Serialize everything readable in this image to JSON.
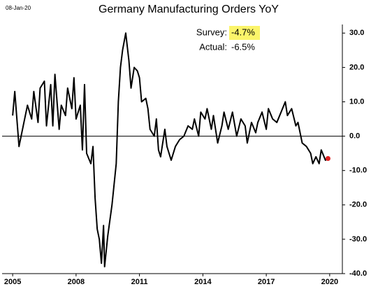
{
  "chart_data": {
    "type": "line",
    "date_stamp": "08-Jan-20",
    "title": "Germany Manufacturing Orders YoY",
    "annotations": [
      {
        "label": "Survey:",
        "value": "-4.7%",
        "highlight": "#fbf46a"
      },
      {
        "label": "Actual:",
        "value": "-6.5%"
      }
    ],
    "x": [
      2005.0,
      2005.1,
      2005.3,
      2005.5,
      2005.7,
      2005.9,
      2006.0,
      2006.2,
      2006.3,
      2006.5,
      2006.6,
      2006.8,
      2006.9,
      2007.0,
      2007.2,
      2007.3,
      2007.5,
      2007.6,
      2007.8,
      2007.9,
      2008.0,
      2008.2,
      2008.3,
      2008.4,
      2008.5,
      2008.7,
      2008.8,
      2008.9,
      2009.0,
      2009.1,
      2009.2,
      2009.3,
      2009.35,
      2009.5,
      2009.7,
      2009.9,
      2010.0,
      2010.1,
      2010.2,
      2010.35,
      2010.5,
      2010.6,
      2010.75,
      2010.9,
      2011.0,
      2011.1,
      2011.3,
      2011.4,
      2011.5,
      2011.7,
      2011.8,
      2011.9,
      2012.0,
      2012.2,
      2012.3,
      2012.5,
      2012.7,
      2012.9,
      2013.1,
      2013.3,
      2013.5,
      2013.6,
      2013.8,
      2013.9,
      2014.1,
      2014.2,
      2014.4,
      2014.5,
      2014.7,
      2014.9,
      2015.0,
      2015.2,
      2015.4,
      2015.6,
      2015.8,
      2016.0,
      2016.1,
      2016.3,
      2016.5,
      2016.6,
      2016.8,
      2017.0,
      2017.1,
      2017.3,
      2017.5,
      2017.7,
      2017.9,
      2018.0,
      2018.2,
      2018.4,
      2018.5,
      2018.7,
      2018.9,
      2019.1,
      2019.2,
      2019.35,
      2019.5,
      2019.6,
      2019.8,
      2019.92
    ],
    "series": [
      {
        "name": "Germany Manufacturing Orders YoY",
        "color": "#000000",
        "values": [
          6,
          13,
          -3,
          3,
          9,
          5,
          13,
          4,
          14,
          16,
          3,
          15,
          3,
          18,
          2,
          9,
          6,
          14,
          8,
          17,
          5,
          9,
          -4,
          15,
          -5,
          -8,
          -3,
          -18,
          -27,
          -30,
          -37,
          -26,
          -38,
          -29,
          -20,
          -8,
          10,
          20,
          25,
          30,
          22,
          14,
          20,
          19,
          17,
          10,
          11,
          8,
          2,
          0,
          5,
          -4,
          -6,
          2,
          -3,
          -7,
          -3,
          -1,
          0,
          3,
          2,
          5,
          0,
          7,
          5,
          8,
          2,
          6,
          -2,
          3,
          7,
          2,
          7,
          0,
          5,
          3,
          -2,
          4,
          1,
          4,
          7,
          2,
          8,
          5,
          4,
          7,
          10,
          6,
          8,
          3,
          4,
          -2,
          -3,
          -5,
          -8,
          -6,
          -8,
          -4,
          -7,
          -6.5
        ]
      }
    ],
    "last_point_color": "#e02020",
    "xlim": [
      2004.5,
      2020.6
    ],
    "xticks": [
      2005,
      2008,
      2011,
      2014,
      2017,
      2020
    ],
    "ylim": [
      -40,
      32.5
    ],
    "yticks": [
      {
        "value": 30,
        "label": "30.0"
      },
      {
        "value": 20,
        "label": "20.0"
      },
      {
        "value": 10,
        "label": "10.0"
      },
      {
        "value": 0,
        "label": "0.0"
      },
      {
        "value": -10,
        "label": "-10.0"
      },
      {
        "value": -20,
        "label": "-20.0"
      },
      {
        "value": -30,
        "label": "-30.0"
      },
      {
        "value": -40,
        "label": "-40.0"
      }
    ],
    "zero_line": true
  }
}
